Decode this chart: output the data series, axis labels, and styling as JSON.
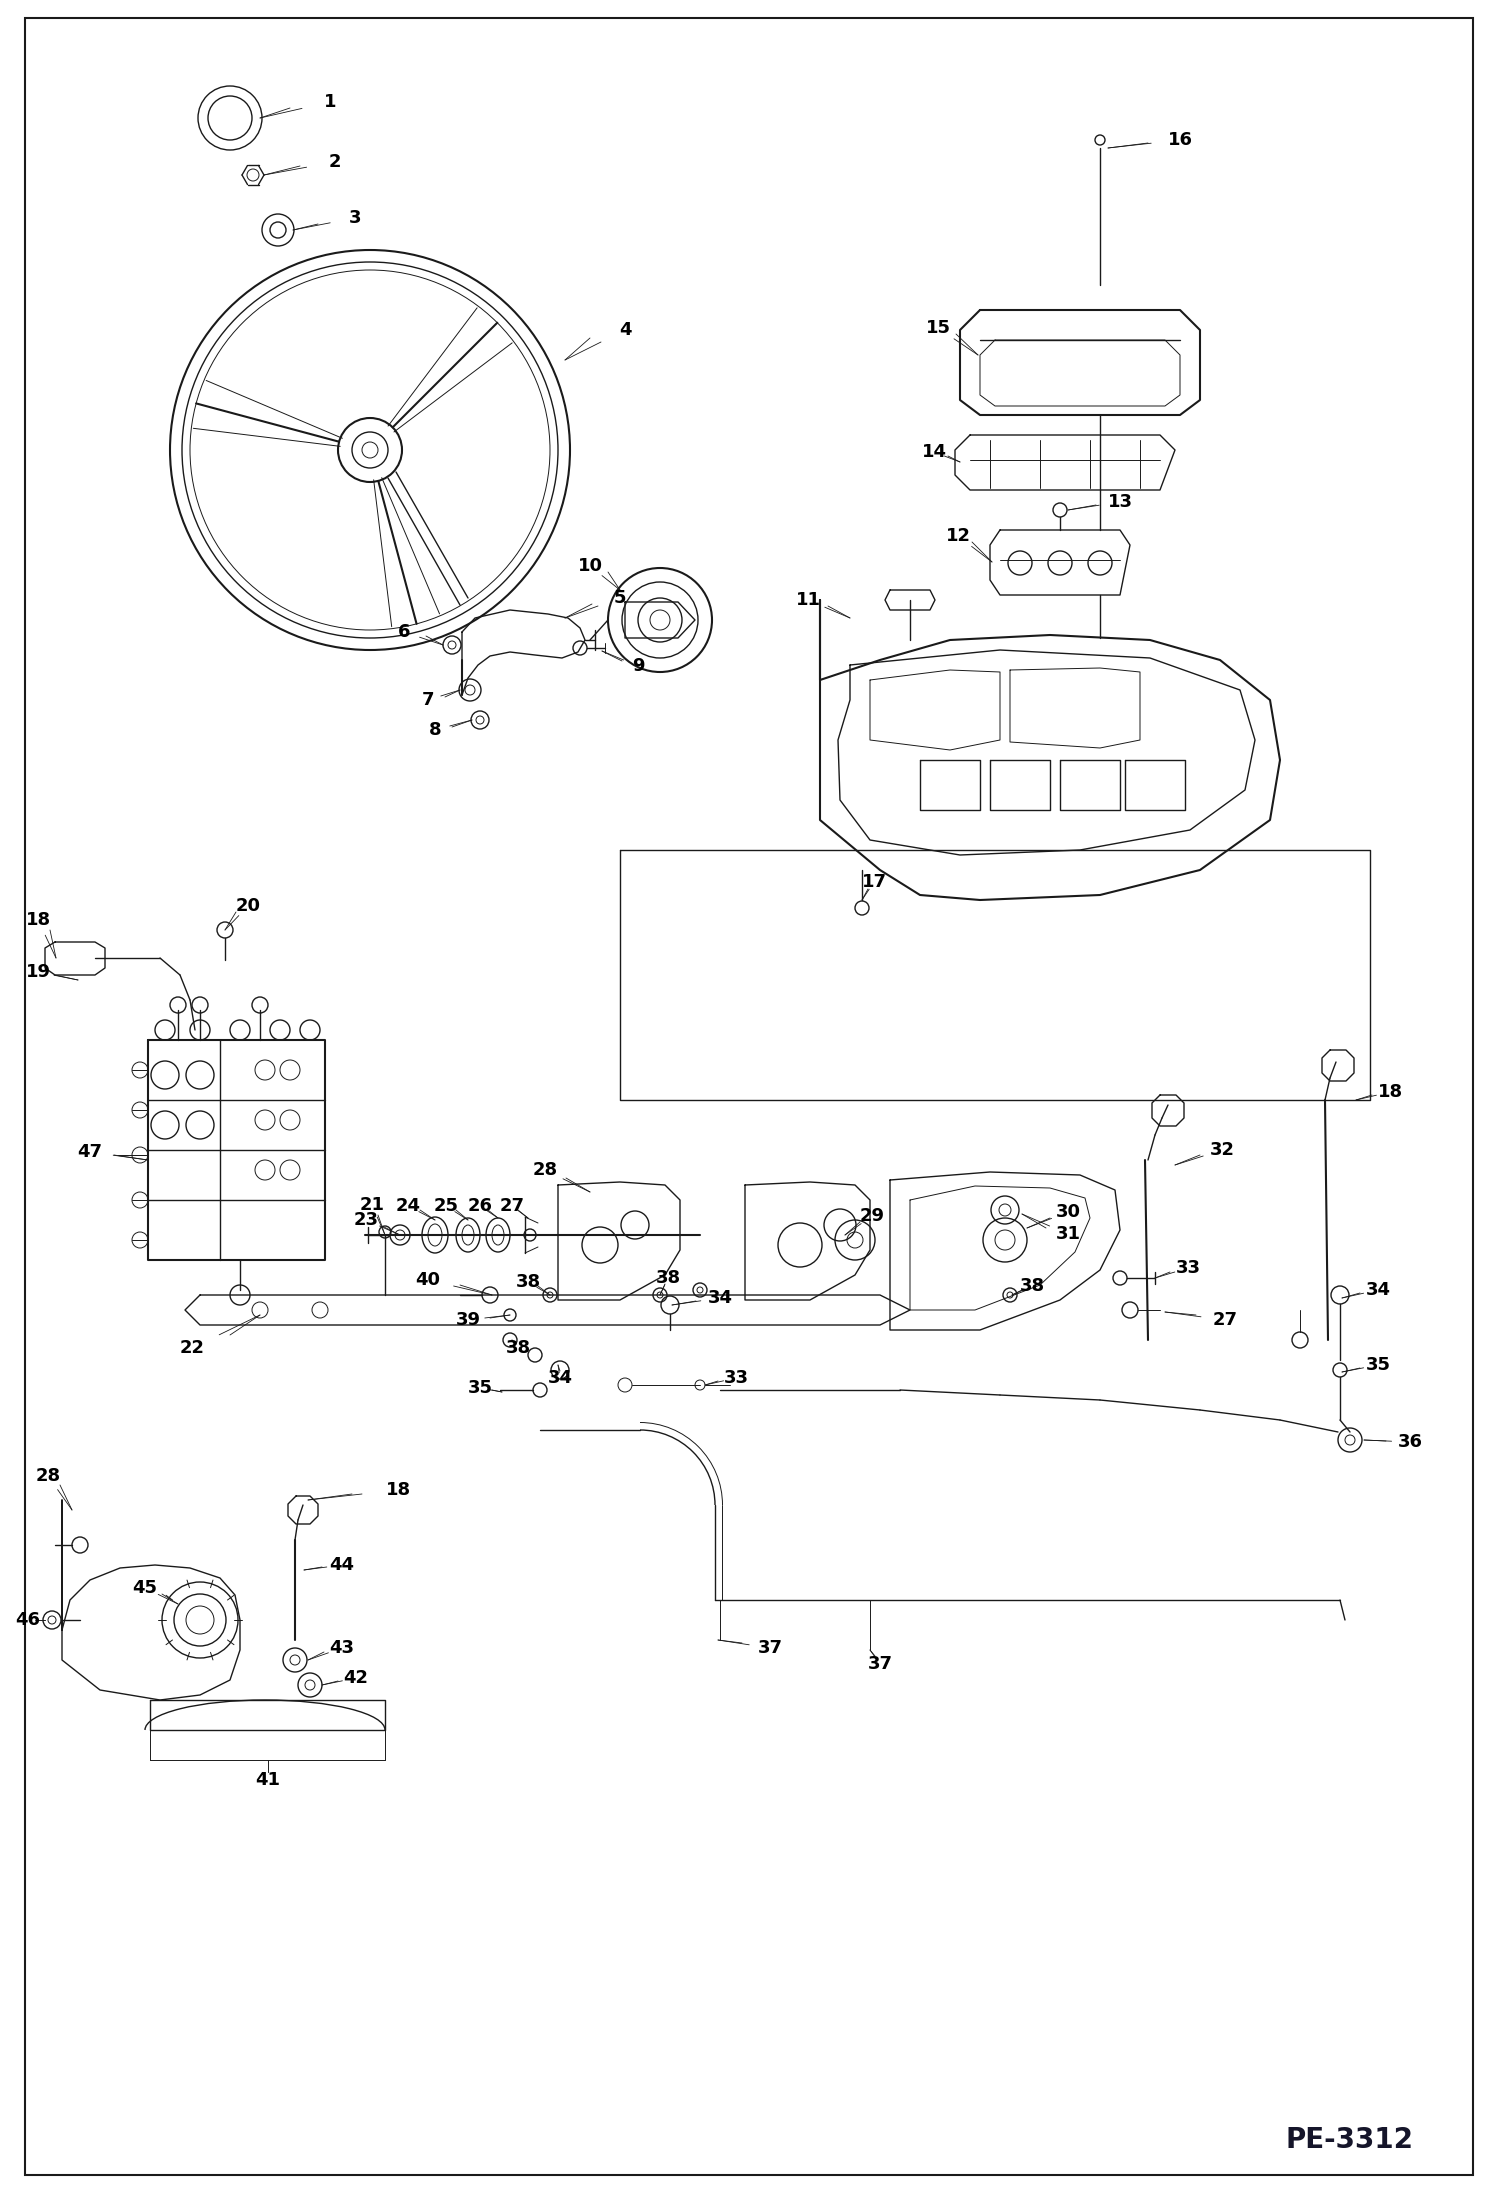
{
  "page_id": "PE-3312",
  "bg_color": "#ffffff",
  "line_color": "#1a1a1a",
  "figsize": [
    14.98,
    21.93
  ],
  "dpi": 100
}
